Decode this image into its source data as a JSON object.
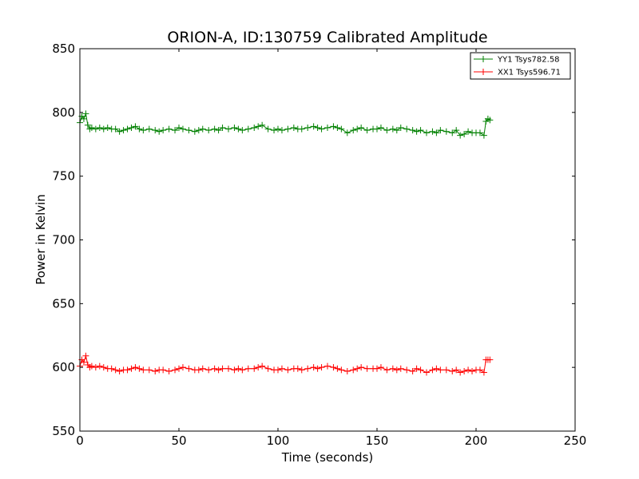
{
  "chart_data": {
    "type": "line",
    "title": "ORION-A, ID:130759 Calibrated Amplitude",
    "xlabel": "Time (seconds)",
    "ylabel": "Power in Kelvin",
    "xlim": [
      0,
      250
    ],
    "ylim": [
      550,
      850
    ],
    "xticks": [
      0,
      50,
      100,
      150,
      200,
      250
    ],
    "yticks": [
      550,
      600,
      650,
      700,
      750,
      800,
      850
    ],
    "grid": false,
    "legend_position": "top-right",
    "marker": "plus",
    "series": [
      {
        "name": "YY1 Tsys782.58",
        "color": "#008000",
        "x": [
          0,
          1,
          2,
          3,
          4,
          5,
          6,
          8,
          10,
          12,
          14,
          16,
          18,
          20,
          22,
          24,
          26,
          28,
          30,
          32,
          35,
          38,
          40,
          42,
          45,
          48,
          50,
          52,
          55,
          58,
          60,
          62,
          65,
          68,
          70,
          72,
          75,
          78,
          80,
          82,
          85,
          88,
          90,
          92,
          95,
          98,
          100,
          102,
          105,
          108,
          110,
          112,
          115,
          118,
          120,
          122,
          125,
          128,
          130,
          132,
          135,
          138,
          140,
          142,
          145,
          148,
          150,
          152,
          155,
          158,
          160,
          162,
          165,
          168,
          170,
          172,
          175,
          178,
          180,
          182,
          185,
          188,
          190,
          192,
          194,
          196,
          198,
          200,
          202,
          204,
          205,
          206,
          207
        ],
        "y": [
          792,
          797,
          795,
          799,
          790,
          787,
          788,
          787,
          788,
          787,
          788,
          787,
          787,
          785,
          786,
          787,
          788,
          789,
          787,
          786,
          787,
          786,
          785,
          786,
          787,
          786,
          788,
          787,
          786,
          785,
          786,
          787,
          786,
          787,
          786,
          788,
          787,
          788,
          787,
          786,
          787,
          788,
          789,
          790,
          787,
          786,
          787,
          786,
          787,
          788,
          787,
          787,
          788,
          789,
          788,
          787,
          788,
          789,
          788,
          787,
          784,
          786,
          787,
          788,
          786,
          787,
          787,
          788,
          786,
          787,
          786,
          788,
          787,
          786,
          785,
          786,
          784,
          785,
          784,
          786,
          785,
          784,
          786,
          782,
          783,
          785,
          784,
          784,
          784,
          782,
          793,
          795,
          794
        ]
      },
      {
        "name": "XX1 Tsys596.71",
        "color": "#ff0000",
        "x": [
          0,
          1,
          2,
          3,
          4,
          5,
          6,
          8,
          10,
          12,
          14,
          16,
          18,
          20,
          22,
          24,
          26,
          28,
          30,
          32,
          35,
          38,
          40,
          42,
          45,
          48,
          50,
          52,
          55,
          58,
          60,
          62,
          65,
          68,
          70,
          72,
          75,
          78,
          80,
          82,
          85,
          88,
          90,
          92,
          95,
          98,
          100,
          102,
          105,
          108,
          110,
          112,
          115,
          118,
          120,
          122,
          125,
          128,
          130,
          132,
          135,
          138,
          140,
          142,
          145,
          148,
          150,
          152,
          155,
          158,
          160,
          162,
          165,
          168,
          170,
          172,
          175,
          178,
          180,
          182,
          185,
          188,
          190,
          192,
          194,
          196,
          198,
          200,
          202,
          204,
          205,
          206,
          207
        ],
        "y": [
          601,
          606,
          604,
          609,
          602,
          600,
          601,
          600,
          601,
          600,
          599,
          599,
          598,
          597,
          598,
          598,
          599,
          600,
          599,
          598,
          598,
          597,
          598,
          598,
          597,
          598,
          599,
          600,
          599,
          598,
          598,
          599,
          598,
          599,
          598,
          599,
          599,
          598,
          599,
          598,
          599,
          599,
          600,
          601,
          599,
          598,
          598,
          599,
          598,
          599,
          599,
          598,
          599,
          600,
          599,
          600,
          601,
          600,
          599,
          598,
          597,
          598,
          599,
          600,
          599,
          599,
          599,
          600,
          598,
          599,
          598,
          599,
          598,
          597,
          599,
          598,
          596,
          598,
          599,
          598,
          598,
          597,
          598,
          596,
          597,
          598,
          597,
          598,
          598,
          596,
          606,
          606,
          606
        ]
      }
    ]
  }
}
